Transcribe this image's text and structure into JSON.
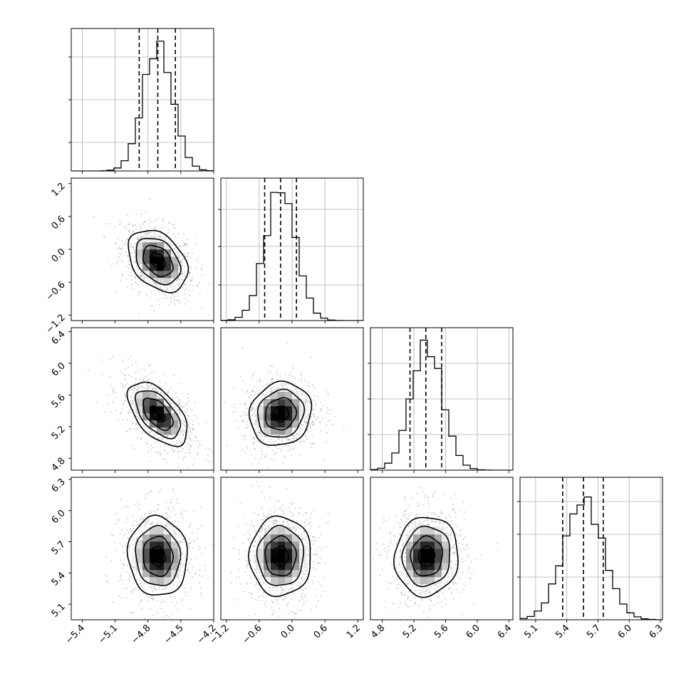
{
  "chart_data": {
    "type": "corner",
    "grid": true,
    "colors": {
      "hist": "#000000",
      "scatter": "#808080",
      "contour": "#000000",
      "grid": "#b0b0b0"
    },
    "params": [
      {
        "range": [
          -5.5,
          -4.2
        ],
        "ticks": [
          -5.4,
          -5.1,
          -4.8,
          -4.5,
          -4.2
        ],
        "tick_labels": [
          "−5.4",
          "−5.1",
          "−4.8",
          "−4.5",
          "−4.2"
        ],
        "quantiles": [
          -4.88,
          -4.71,
          -4.55
        ],
        "mean": -4.71,
        "sd": 0.135,
        "hist_ticks": [
          0.2,
          0.5,
          0.8
        ],
        "hist_max": 0.88
      },
      {
        "range": [
          -1.3,
          1.3
        ],
        "ticks": [
          -1.2,
          -0.6,
          0.0,
          0.6,
          1.2
        ],
        "tick_labels": [
          "−1.2",
          "−0.6",
          "0.0",
          "0.6",
          "1.2"
        ],
        "quantiles": [
          -0.5,
          -0.21,
          0.08
        ],
        "mean": -0.21,
        "sd": 0.28,
        "hist_ticks": [
          0.25,
          0.52,
          0.78
        ],
        "hist_max": 0.93
      },
      {
        "range": [
          4.65,
          6.45
        ],
        "ticks": [
          4.8,
          5.2,
          5.6,
          6.0,
          6.4
        ],
        "tick_labels": [
          "4.8",
          "5.2",
          "5.6",
          "6.0",
          "6.4"
        ],
        "quantiles": [
          5.15,
          5.35,
          5.55
        ],
        "mean": 5.36,
        "sd": 0.2,
        "hist_ticks": [
          0.25,
          0.5,
          0.75
        ],
        "hist_max": 0.88
      },
      {
        "range": [
          4.95,
          6.32
        ],
        "ticks": [
          5.1,
          5.4,
          5.7,
          6.0,
          6.3
        ],
        "tick_labels": [
          "5.1",
          "5.4",
          "5.7",
          "6.0",
          "6.3"
        ],
        "quantiles": [
          5.36,
          5.56,
          5.75
        ],
        "mean": 5.56,
        "sd": 0.19,
        "hist_ticks": [
          0.3,
          0.6,
          0.83
        ],
        "hist_max": 0.84
      }
    ],
    "correlations": [
      {
        "pair": [
          1,
          0
        ],
        "rho": -0.35
      },
      {
        "pair": [
          2,
          0
        ],
        "rho": -0.55
      },
      {
        "pair": [
          2,
          1
        ],
        "rho": 0.1
      },
      {
        "pair": [
          3,
          0
        ],
        "rho": -0.05
      },
      {
        "pair": [
          3,
          1
        ],
        "rho": 0.0
      },
      {
        "pair": [
          3,
          2
        ],
        "rho": 0.05
      }
    ],
    "contour_levels": [
      0.5,
      1.0,
      1.5,
      2.0
    ],
    "n_bins": 20,
    "n_points": 900
  }
}
